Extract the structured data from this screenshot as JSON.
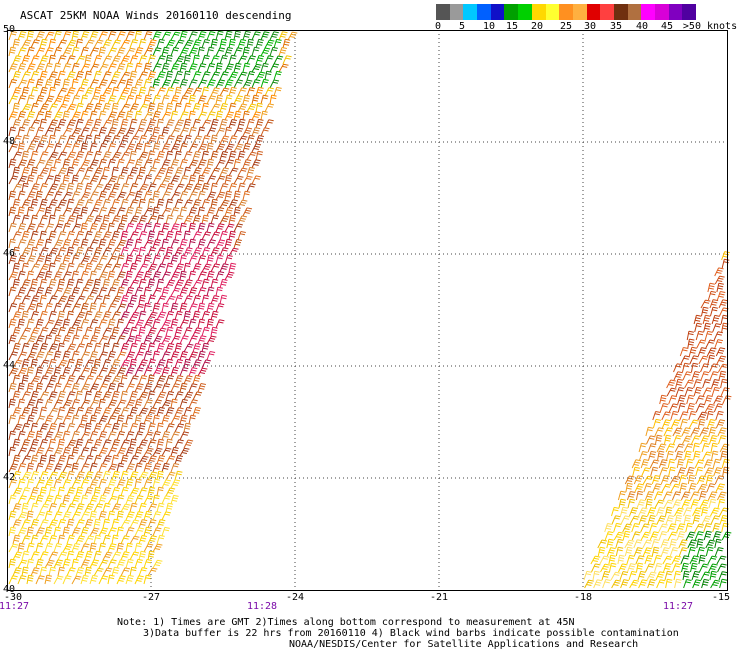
{
  "title": "ASCAT 25KM NOAA Winds 20160110 descending",
  "colorbar": {
    "colors": [
      "#555555",
      "#9a9a9a",
      "#00c8ff",
      "#0060ff",
      "#1010c8",
      "#00a000",
      "#00d000",
      "#ffd800",
      "#ffff30",
      "#ff9020",
      "#ffb040",
      "#e00000",
      "#ff4040",
      "#703010",
      "#b07040",
      "#ff00ff",
      "#d800d8",
      "#8000c0",
      "#5000a0"
    ],
    "labels": [
      "0",
      "5",
      "10",
      "15",
      "20",
      "25",
      "30",
      "35",
      "40",
      "45",
      ">50 knots"
    ]
  },
  "axes": {
    "lon_ticks": [
      "-30",
      "-27",
      "-24",
      "-21",
      "-18",
      "-15"
    ],
    "lat_ticks": [
      "50",
      "48",
      "46",
      "44",
      "42",
      "40"
    ]
  },
  "times": [
    "11:27",
    "11:28",
    "11:27"
  ],
  "notes": [
    "Note: 1) Times are GMT 2)Times along bottom correspond to measurement at 45N",
    "3)Data buffer is 22 hrs from 20160110 4) Black wind barbs indicate possible contamination",
    "NOAA/NESDIS/Center for Satellite Applications and Research"
  ]
}
